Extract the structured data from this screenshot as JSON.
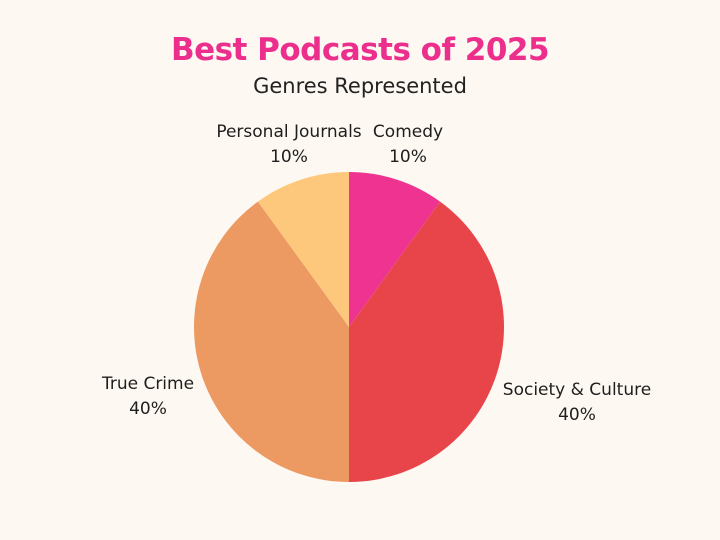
{
  "chart_data": {
    "type": "pie",
    "title": "Best Podcasts of 2025",
    "subtitle": "Genres Represented",
    "categories": [
      "Comedy",
      "Society & Culture",
      "True Crime",
      "Personal Journals"
    ],
    "values": [
      10,
      40,
      40,
      10
    ],
    "value_labels": [
      "10%",
      "40%",
      "40%",
      "10%"
    ],
    "colors": [
      "#ee3391",
      "#e8454b",
      "#ec9a62",
      "#fdc87b"
    ],
    "start_angle": "12 o'clock",
    "direction": "clockwise",
    "legend": "none"
  },
  "colors": {
    "background": "#fdf8f1",
    "title": "#ec2e8c"
  }
}
